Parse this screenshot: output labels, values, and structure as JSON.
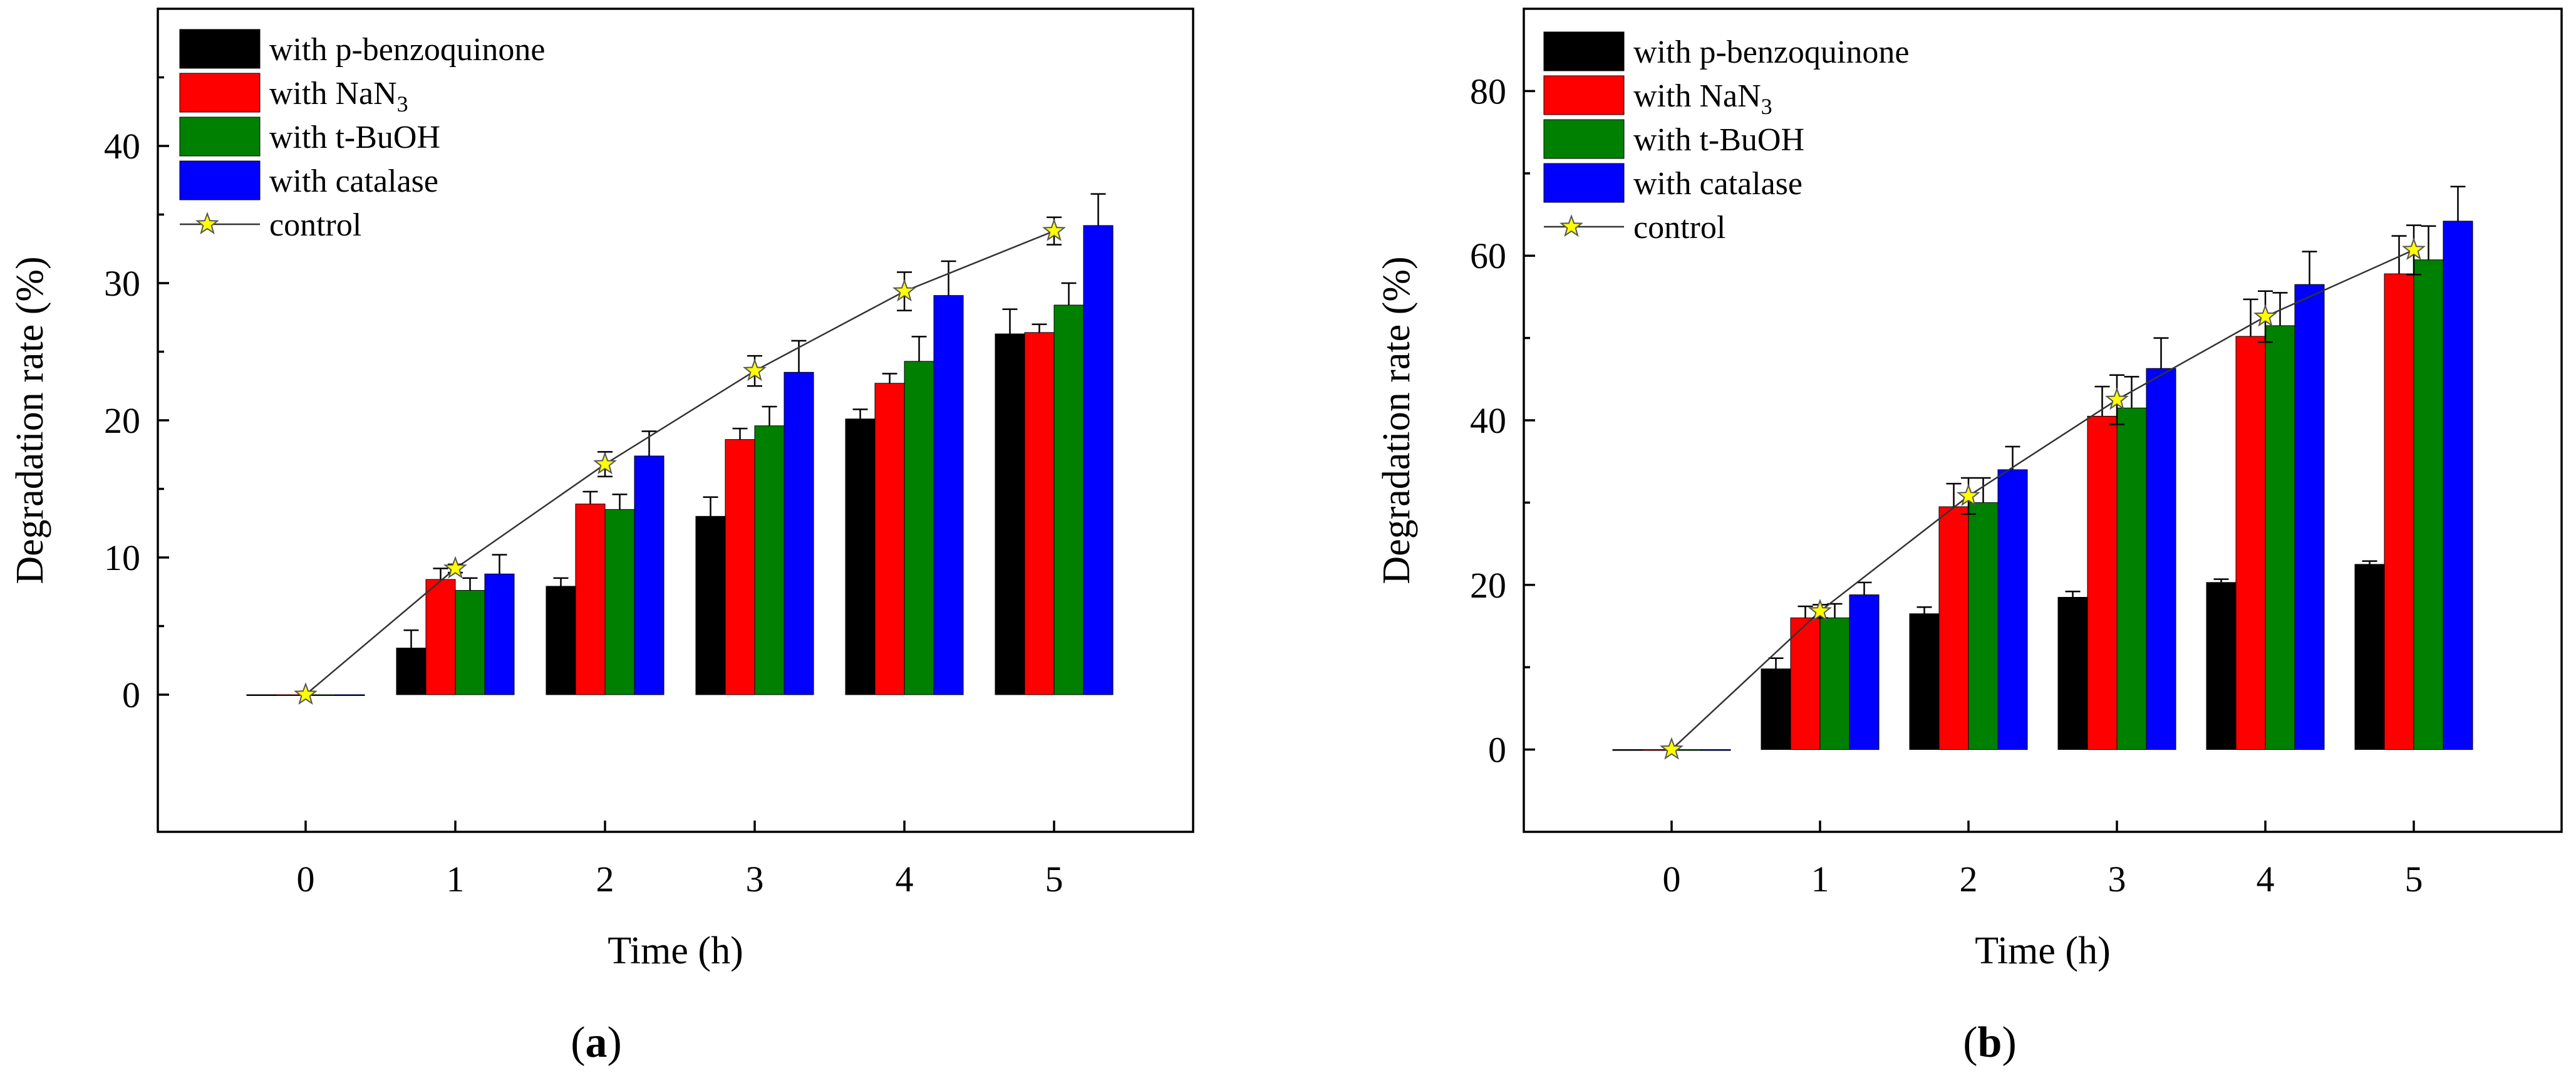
{
  "series_colors": {
    "p_benzoquinone": "#000000",
    "nan3": "#ff0000",
    "t_buoh": "#008000",
    "catalase": "#0000ff",
    "control": "#ffff00"
  },
  "legend": {
    "p_benzoquinone": "with p-benzoquinone",
    "nan3_prefix": "with NaN",
    "nan3_sub": "3",
    "t_buoh": "with t-BuOH",
    "catalase": "with catalase",
    "control": "control"
  },
  "chart_data": [
    {
      "panel_label_bold": "a",
      "panel_label_paren_open": "(",
      "panel_label_paren_close": ")",
      "type": "bar",
      "title": "",
      "xlabel": "Time (h)",
      "ylabel": "Degradation rate (%)",
      "categories": [
        "0",
        "1",
        "2",
        "3",
        "4",
        "5"
      ],
      "ylim": [
        -10,
        50
      ],
      "yticks": [
        0,
        10,
        20,
        30,
        40
      ],
      "series": [
        {
          "key": "p_benzoquinone",
          "name": "with p-benzoquinone",
          "values": [
            0,
            3.4,
            7.9,
            13.0,
            20.1,
            26.3
          ],
          "errors": [
            0,
            1.3,
            0.6,
            1.4,
            0.7,
            1.8
          ]
        },
        {
          "key": "nan3",
          "name": "with NaN3",
          "values": [
            0,
            8.4,
            13.9,
            18.6,
            22.7,
            26.4
          ],
          "errors": [
            0,
            0.8,
            0.9,
            0.8,
            0.7,
            0.6
          ]
        },
        {
          "key": "t_buoh",
          "name": "with t-BuOH",
          "values": [
            0,
            7.6,
            13.5,
            19.6,
            24.3,
            28.4
          ],
          "errors": [
            0,
            0.9,
            1.1,
            1.4,
            1.8,
            1.6
          ]
        },
        {
          "key": "catalase",
          "name": "with catalase",
          "values": [
            0,
            8.8,
            17.4,
            23.5,
            29.1,
            34.2
          ],
          "errors": [
            0,
            1.4,
            1.8,
            2.3,
            2.5,
            2.3
          ]
        }
      ],
      "control": {
        "name": "control",
        "values": [
          0,
          9.2,
          16.8,
          23.6,
          29.4,
          33.8
        ],
        "errors": [
          0,
          0.3,
          0.9,
          1.1,
          1.4,
          1.0
        ]
      }
    },
    {
      "panel_label_bold": "b",
      "panel_label_paren_open": "(",
      "panel_label_paren_close": ")",
      "type": "bar",
      "title": "",
      "xlabel": "Time (h)",
      "ylabel": "Degradation rate (%)",
      "categories": [
        "0",
        "1",
        "2",
        "3",
        "4",
        "5"
      ],
      "ylim": [
        -10,
        90
      ],
      "yticks": [
        0,
        20,
        40,
        60,
        80
      ],
      "series": [
        {
          "key": "p_benzoquinone",
          "name": "with p-benzoquinone",
          "values": [
            0,
            9.8,
            16.5,
            18.5,
            20.3,
            22.5
          ],
          "errors": [
            0,
            1.3,
            0.8,
            0.7,
            0.4,
            0.4
          ]
        },
        {
          "key": "nan3",
          "name": "with NaN3",
          "values": [
            0,
            16.0,
            29.5,
            40.5,
            50.2,
            57.8
          ],
          "errors": [
            0,
            1.4,
            2.8,
            3.6,
            4.5,
            4.6
          ]
        },
        {
          "key": "t_buoh",
          "name": "with t-BuOH",
          "values": [
            0,
            16.0,
            30.0,
            41.5,
            51.5,
            59.5
          ],
          "errors": [
            0,
            1.7,
            3.0,
            3.8,
            4.0,
            4.1
          ]
        },
        {
          "key": "catalase",
          "name": "with catalase",
          "values": [
            0,
            18.8,
            34.0,
            46.3,
            56.5,
            64.2
          ],
          "errors": [
            0,
            1.5,
            2.8,
            3.7,
            4.0,
            4.2
          ]
        }
      ],
      "control": {
        "name": "control",
        "values": [
          0,
          16.8,
          30.8,
          42.5,
          52.6,
          60.7
        ],
        "errors": [
          0,
          0.8,
          2.2,
          3.0,
          3.1,
          3.0
        ]
      }
    }
  ]
}
